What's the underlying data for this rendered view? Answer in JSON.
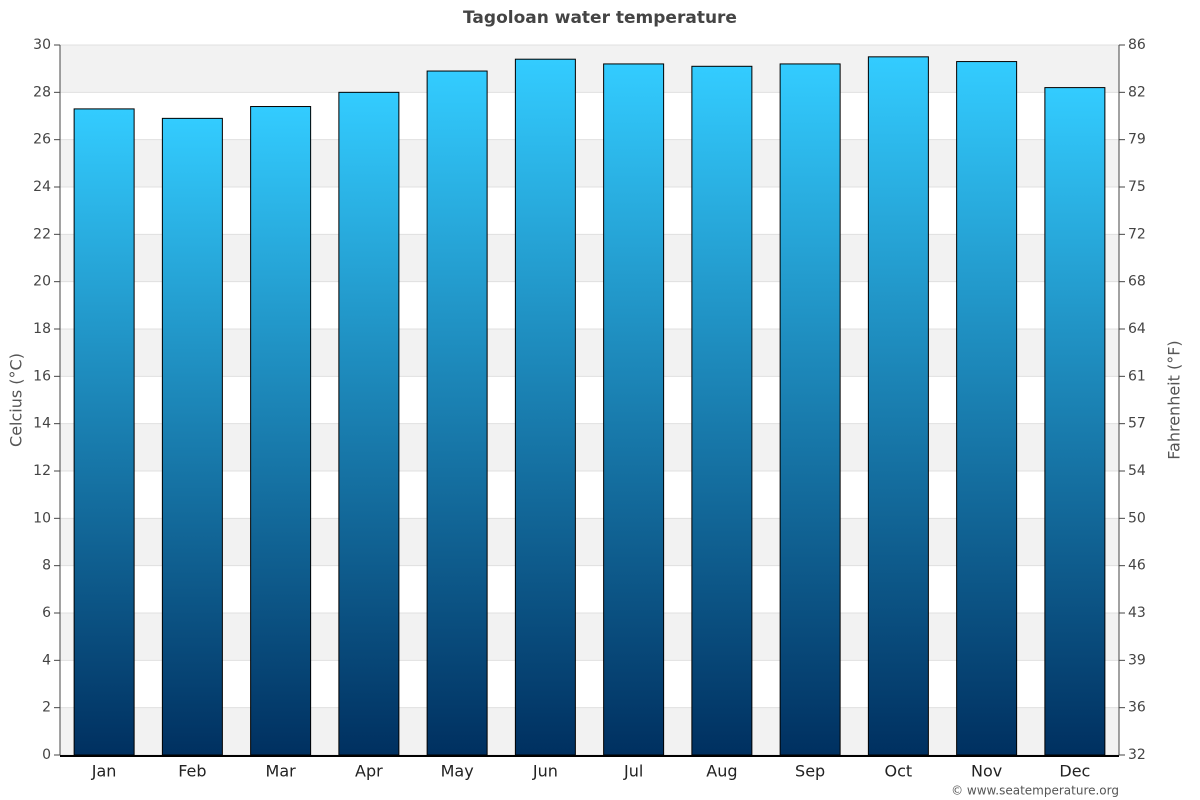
{
  "chart_data": {
    "type": "bar",
    "title": "Tagoloan water temperature",
    "y_label": "Celcius (°C)",
    "y2_label": "Fahrenheit (°F)",
    "credit": "© www.seatemperature.org",
    "categories": [
      "Jan",
      "Feb",
      "Mar",
      "Apr",
      "May",
      "Jun",
      "Jul",
      "Aug",
      "Sep",
      "Oct",
      "Nov",
      "Dec"
    ],
    "values": [
      27.3,
      26.9,
      27.4,
      28.0,
      28.9,
      29.4,
      29.2,
      29.1,
      29.2,
      29.5,
      29.3,
      28.2
    ],
    "gradient": [
      "#33ccff",
      "#003060"
    ],
    "ylim": [
      0,
      30
    ],
    "yticks": [
      0,
      2,
      4,
      6,
      8,
      10,
      12,
      14,
      16,
      18,
      20,
      22,
      24,
      26,
      28,
      30
    ],
    "y2lim": [
      32,
      86
    ],
    "y2ticks": [
      32,
      {
        "value": 35.6,
        "label": "36"
      },
      {
        "value": 39.2,
        "label": "39"
      },
      {
        "value": 42.8,
        "label": "43"
      },
      {
        "value": 46.4,
        "label": "46"
      },
      50,
      {
        "value": 53.6,
        "label": "54"
      },
      {
        "value": 57.2,
        "label": "57"
      },
      {
        "value": 60.8,
        "label": "61"
      },
      {
        "value": 64.4,
        "label": "64"
      },
      68,
      {
        "value": 71.6,
        "label": "72"
      },
      {
        "value": 75.2,
        "label": "75"
      },
      {
        "value": 78.8,
        "label": "79"
      },
      {
        "value": 82.4,
        "label": "82"
      },
      86
    ],
    "grid": true
  }
}
